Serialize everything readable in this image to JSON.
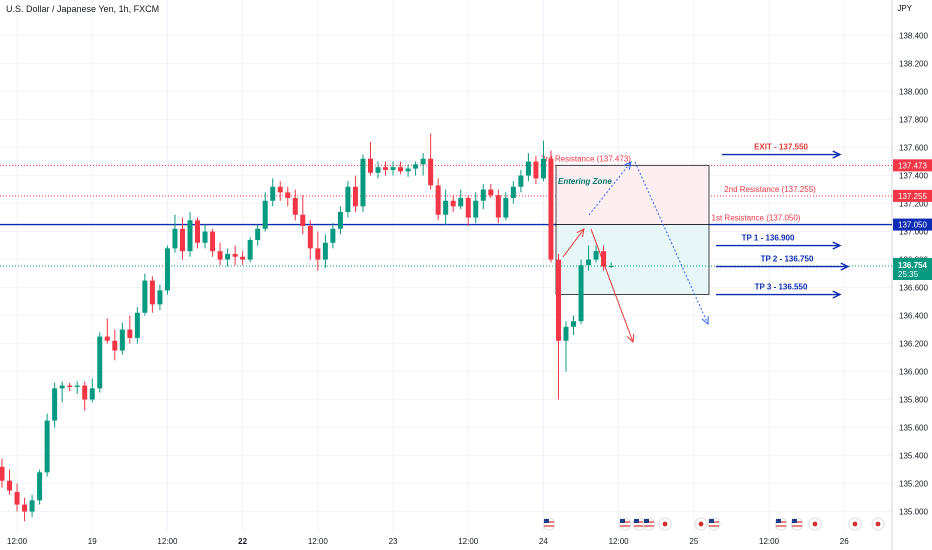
{
  "header": {
    "title": "U.S. Dollar / Japanese Yen, 1h, FXCM",
    "currency": "JPY"
  },
  "colors": {
    "up": "#089981",
    "down": "#f23645",
    "blue": "#2962ff",
    "navy": "#0d2cb3",
    "red": "#e53935",
    "resistance": "#f23645",
    "grid": "#f0f3fa",
    "zone_top": "#fdeff1",
    "zone_bottom": "#e7f7f8"
  },
  "chart_data": {
    "type": "candlestick",
    "symbol": "USDJPY",
    "timeframe": "1h",
    "ylim": [
      134.93,
      138.53
    ],
    "y_ticks": [
      138.4,
      138.2,
      138.0,
      137.8,
      137.6,
      137.4,
      137.2,
      137.0,
      136.8,
      136.6,
      136.4,
      136.2,
      136.0,
      135.8,
      135.6,
      135.4,
      135.2,
      135.0
    ],
    "y_tick_labels": [
      "138.400",
      "138.200",
      "138.000",
      "137.800",
      "137.600",
      "137.400",
      "137.200",
      "137.000",
      "136.800",
      "136.600",
      "136.400",
      "136.200",
      "136.000",
      "135.800",
      "135.600",
      "135.400",
      "135.200",
      "135.000"
    ],
    "x_ticks": [
      {
        "bar": 2,
        "label": "12:00",
        "bold": false
      },
      {
        "bar": 12,
        "label": "19",
        "bold": false
      },
      {
        "bar": 22,
        "label": "12:00",
        "bold": false
      },
      {
        "bar": 32,
        "label": "22",
        "bold": true
      },
      {
        "bar": 42,
        "label": "12:00",
        "bold": false
      },
      {
        "bar": 52,
        "label": "23",
        "bold": false
      },
      {
        "bar": 62,
        "label": "12:00",
        "bold": false
      },
      {
        "bar": 72,
        "label": "24",
        "bold": false
      },
      {
        "bar": 82,
        "label": "12:00",
        "bold": false
      },
      {
        "bar": 92,
        "label": "25",
        "bold": false
      },
      {
        "bar": 102,
        "label": "12:00",
        "bold": false
      },
      {
        "bar": 112,
        "label": "26",
        "bold": false
      }
    ],
    "candles": [
      [
        135.32,
        135.38,
        135.17,
        135.22
      ],
      [
        135.22,
        135.3,
        135.12,
        135.15
      ],
      [
        135.14,
        135.2,
        135.0,
        135.05
      ],
      [
        135.05,
        135.1,
        134.93,
        135.0
      ],
      [
        135.0,
        135.12,
        134.96,
        135.08
      ],
      [
        135.08,
        135.3,
        135.05,
        135.28
      ],
      [
        135.28,
        135.7,
        135.25,
        135.65
      ],
      [
        135.65,
        135.92,
        135.6,
        135.88
      ],
      [
        135.88,
        135.93,
        135.78,
        135.9
      ],
      [
        135.9,
        135.92,
        135.86,
        135.89
      ],
      [
        135.89,
        135.93,
        135.84,
        135.9
      ],
      [
        135.9,
        135.93,
        135.72,
        135.8
      ],
      [
        135.8,
        135.95,
        135.78,
        135.88
      ],
      [
        135.88,
        136.28,
        135.85,
        136.25
      ],
      [
        136.25,
        136.38,
        136.2,
        136.22
      ],
      [
        136.22,
        136.3,
        136.08,
        136.15
      ],
      [
        136.15,
        136.35,
        136.12,
        136.3
      ],
      [
        136.3,
        136.4,
        136.2,
        136.24
      ],
      [
        136.24,
        136.46,
        136.2,
        136.42
      ],
      [
        136.42,
        136.7,
        136.4,
        136.65
      ],
      [
        136.65,
        136.68,
        136.42,
        136.48
      ],
      [
        136.48,
        136.62,
        136.44,
        136.58
      ],
      [
        136.58,
        136.9,
        136.55,
        136.88
      ],
      [
        136.88,
        137.12,
        136.85,
        137.02
      ],
      [
        137.02,
        137.1,
        136.8,
        136.86
      ],
      [
        136.86,
        137.14,
        136.82,
        137.08
      ],
      [
        137.08,
        137.1,
        136.88,
        136.92
      ],
      [
        136.92,
        137.05,
        136.88,
        137.0
      ],
      [
        137.0,
        137.02,
        136.82,
        136.86
      ],
      [
        136.86,
        136.92,
        136.76,
        136.8
      ],
      [
        136.8,
        136.88,
        136.75,
        136.84
      ],
      [
        136.84,
        136.9,
        136.76,
        136.82
      ],
      [
        136.82,
        136.86,
        136.76,
        136.8
      ],
      [
        136.8,
        136.96,
        136.78,
        136.94
      ],
      [
        136.94,
        137.05,
        136.9,
        137.02
      ],
      [
        137.02,
        137.28,
        137.0,
        137.22
      ],
      [
        137.22,
        137.38,
        137.18,
        137.32
      ],
      [
        137.32,
        137.36,
        137.22,
        137.28
      ],
      [
        137.28,
        137.32,
        137.18,
        137.24
      ],
      [
        137.24,
        137.3,
        137.08,
        137.12
      ],
      [
        137.12,
        137.26,
        136.98,
        137.04
      ],
      [
        137.04,
        137.08,
        136.8,
        136.88
      ],
      [
        136.88,
        137.0,
        136.72,
        136.8
      ],
      [
        136.8,
        136.98,
        136.74,
        136.92
      ],
      [
        136.92,
        137.06,
        136.88,
        137.02
      ],
      [
        137.02,
        137.18,
        136.98,
        137.14
      ],
      [
        137.14,
        137.36,
        137.1,
        137.32
      ],
      [
        137.32,
        137.4,
        137.14,
        137.18
      ],
      [
        137.18,
        137.55,
        137.14,
        137.52
      ],
      [
        137.52,
        137.64,
        137.4,
        137.42
      ],
      [
        137.42,
        137.5,
        137.38,
        137.46
      ],
      [
        137.46,
        137.5,
        137.4,
        137.44
      ],
      [
        137.44,
        137.5,
        137.4,
        137.46
      ],
      [
        137.46,
        137.5,
        137.41,
        137.43
      ],
      [
        137.43,
        137.48,
        137.39,
        137.45
      ],
      [
        137.45,
        137.5,
        137.4,
        137.48
      ],
      [
        137.48,
        137.56,
        137.4,
        137.52
      ],
      [
        137.52,
        137.7,
        137.3,
        137.33
      ],
      [
        137.33,
        137.38,
        137.08,
        137.12
      ],
      [
        137.12,
        137.3,
        137.05,
        137.22
      ],
      [
        137.22,
        137.26,
        137.14,
        137.18
      ],
      [
        137.18,
        137.3,
        137.16,
        137.24
      ],
      [
        137.24,
        137.26,
        137.04,
        137.1
      ],
      [
        137.1,
        137.28,
        137.06,
        137.22
      ],
      [
        137.22,
        137.34,
        137.16,
        137.3
      ],
      [
        137.3,
        137.34,
        137.24,
        137.26
      ],
      [
        137.26,
        137.3,
        137.06,
        137.1
      ],
      [
        137.1,
        137.28,
        137.08,
        137.24
      ],
      [
        137.24,
        137.36,
        137.2,
        137.32
      ],
      [
        137.32,
        137.44,
        137.28,
        137.4
      ],
      [
        137.4,
        137.56,
        137.36,
        137.5
      ],
      [
        137.5,
        137.54,
        137.34,
        137.38
      ],
      [
        137.38,
        137.65,
        137.36,
        137.52
      ],
      [
        137.52,
        137.58,
        136.78,
        136.8
      ],
      [
        136.8,
        136.84,
        135.8,
        136.22
      ],
      [
        136.22,
        136.36,
        136.0,
        136.32
      ],
      [
        136.32,
        136.4,
        136.26,
        136.36
      ],
      [
        136.36,
        136.8,
        136.34,
        136.76
      ],
      [
        136.76,
        136.9,
        136.72,
        136.8
      ],
      [
        136.8,
        136.9,
        136.78,
        136.86
      ],
      [
        136.86,
        136.9,
        136.72,
        136.75
      ],
      [
        136.75,
        136.78,
        136.74,
        136.754
      ]
    ],
    "last_price": "136.754",
    "countdown": "25:35",
    "price_labels": [
      {
        "price": 137.473,
        "label": "137.473",
        "color": "#f23645"
      },
      {
        "price": 137.255,
        "label": "137.255",
        "color": "#f23645"
      },
      {
        "price": 137.05,
        "label": "137.050",
        "color": "#0d2cb3"
      }
    ],
    "levels": [
      {
        "price": 137.473,
        "label": "3rd Resistance (137.473)",
        "style": "dotted-red"
      },
      {
        "price": 137.255,
        "label": "2nd Resistance (137.255)",
        "style": "dotted-red"
      },
      {
        "price": 137.05,
        "label": "1st Resistance (137.050)",
        "style": "solid-blue"
      }
    ],
    "zone": {
      "label": "Entering Zone",
      "top": 137.473,
      "mid": 137.05,
      "bottom": 136.55
    },
    "targets": [
      {
        "label": "EXIT - 137.550",
        "price": 137.55
      },
      {
        "label": "TP 1 - 136.900",
        "price": 136.9
      },
      {
        "label": "TP 2 - 136.750",
        "price": 136.75
      },
      {
        "label": "TP 3 - 136.550",
        "price": 136.55
      }
    ],
    "event_icons": [
      "us-flag-icon",
      "us-flag-icon",
      "us-flag-icon",
      "us-flag-icon",
      "jp-flag-icon",
      "jp-flag-icon",
      "us-flag-icon",
      "us-flag-icon",
      "us-flag-icon",
      "jp-flag-icon",
      "jp-flag-icon"
    ]
  }
}
